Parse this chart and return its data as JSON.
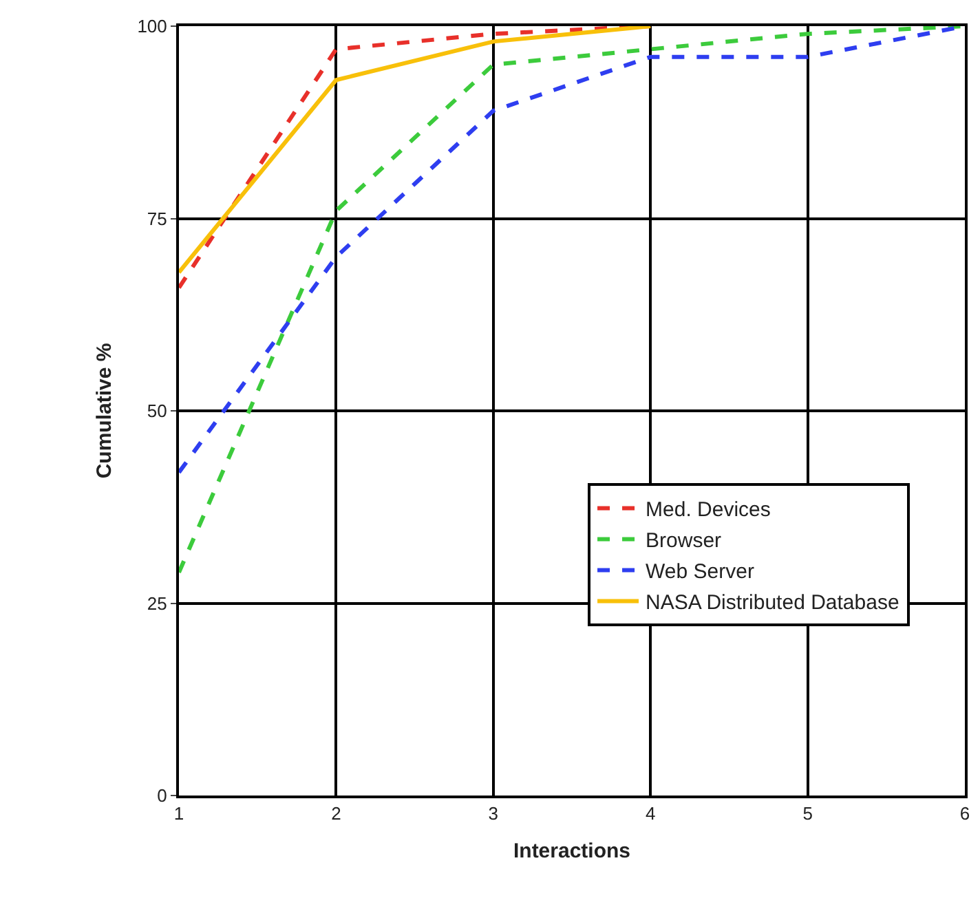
{
  "chart_data": {
    "type": "line",
    "xlabel": "Interactions",
    "ylabel": "Cumulative %",
    "xlim": [
      1,
      6
    ],
    "xticks": [
      1,
      2,
      3,
      4,
      5,
      6
    ],
    "ylim": [
      0,
      100
    ],
    "yticks": [
      0,
      25,
      50,
      75,
      100
    ],
    "grid": true,
    "legend": "bottom right",
    "marker": "none",
    "series": [
      {
        "name": "Med. Devices",
        "color": "#e8302a",
        "line_style": "dashed",
        "x": [
          1,
          2,
          3,
          4
        ],
        "values": [
          66,
          97,
          99,
          100
        ]
      },
      {
        "name": "Browser",
        "color": "#3ccb3c",
        "line_style": "dashed",
        "x": [
          1,
          2,
          3,
          4,
          5,
          6
        ],
        "values": [
          29,
          76,
          95,
          97,
          99,
          100
        ]
      },
      {
        "name": "Web Server",
        "color": "#2e3ef0",
        "line_style": "dashed",
        "x": [
          1,
          2,
          3,
          4,
          5,
          6
        ],
        "values": [
          42,
          70,
          89,
          96,
          96,
          100
        ]
      },
      {
        "name": "NASA Distributed Database",
        "color": "#f8c00a",
        "line_style": "solid",
        "x": [
          1,
          2,
          3,
          4
        ],
        "values": [
          68,
          93,
          98,
          100
        ]
      }
    ]
  }
}
